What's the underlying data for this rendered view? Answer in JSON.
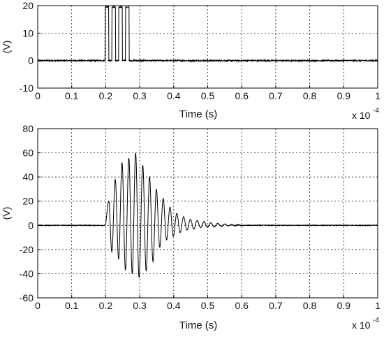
{
  "chart_data": [
    {
      "type": "line",
      "title": "",
      "xlabel": "Time (s)",
      "ylabel": "(V)",
      "x_multiplier": "x 10",
      "x_exponent": "-4",
      "xlim": [
        0,
        1
      ],
      "ylim": [
        -10,
        20
      ],
      "grid": true,
      "x_ticks": [
        "0",
        "0.1",
        "0.2",
        "0.3",
        "0.4",
        "0.5",
        "0.6",
        "0.7",
        "0.8",
        "0.9",
        "1"
      ],
      "y_ticks": [
        "20",
        "10",
        "0",
        "-10"
      ],
      "line_color": "#000000",
      "noise_amplitude_v": 0.5,
      "series": [
        {
          "kind": "pulse_train",
          "baseline_v": 0,
          "high_v": 19.5,
          "start_x": 0.198,
          "pulses": 4,
          "pulse_period_x": 0.02,
          "pulse_high_width_x": 0.011
        }
      ]
    },
    {
      "type": "line",
      "title": "",
      "xlabel": "Time (s)",
      "ylabel": "(V)",
      "x_multiplier": "x 10",
      "x_exponent": "-4",
      "xlim": [
        0,
        1
      ],
      "ylim": [
        -60,
        80
      ],
      "grid": true,
      "x_ticks": [
        "0",
        "0.1",
        "0.2",
        "0.3",
        "0.4",
        "0.5",
        "0.6",
        "0.7",
        "0.8",
        "0.9",
        "1"
      ],
      "y_ticks": [
        "80",
        "60",
        "40",
        "20",
        "0",
        "-20",
        "-40",
        "-60"
      ],
      "line_color": "#000000",
      "noise_amplitude_v": 0.6,
      "series": [
        {
          "kind": "damped_oscillation",
          "onset_x": 0.198,
          "cycle_x": 0.02,
          "positive_peaks_v": [
            [
              0.209,
              20
            ],
            [
              0.228,
              38
            ],
            [
              0.248,
              52
            ],
            [
              0.268,
              56
            ],
            [
              0.288,
              60
            ],
            [
              0.309,
              50
            ],
            [
              0.329,
              40
            ],
            [
              0.349,
              30
            ],
            [
              0.369,
              22
            ],
            [
              0.389,
              15
            ],
            [
              0.409,
              10
            ],
            [
              0.429,
              7
            ],
            [
              0.449,
              5
            ],
            [
              0.469,
              4
            ],
            [
              0.489,
              3
            ],
            [
              0.509,
              2
            ],
            [
              0.529,
              1.5
            ],
            [
              0.55,
              1
            ],
            [
              0.57,
              0.6
            ],
            [
              0.59,
              0.4
            ]
          ],
          "negative_peaks_v": [
            [
              0.218,
              -22
            ],
            [
              0.238,
              -28
            ],
            [
              0.258,
              -37
            ],
            [
              0.278,
              -40
            ],
            [
              0.298,
              -43
            ],
            [
              0.319,
              -38
            ],
            [
              0.339,
              -30
            ],
            [
              0.359,
              -18
            ],
            [
              0.379,
              -12
            ],
            [
              0.399,
              -9
            ],
            [
              0.419,
              -6
            ],
            [
              0.439,
              -4
            ],
            [
              0.459,
              -3
            ],
            [
              0.479,
              -2
            ],
            [
              0.499,
              -1.5
            ],
            [
              0.519,
              -1.2
            ],
            [
              0.54,
              -0.8
            ],
            [
              0.56,
              -0.5
            ],
            [
              0.58,
              -0.3
            ],
            [
              0.6,
              -0.2
            ]
          ]
        }
      ]
    }
  ]
}
